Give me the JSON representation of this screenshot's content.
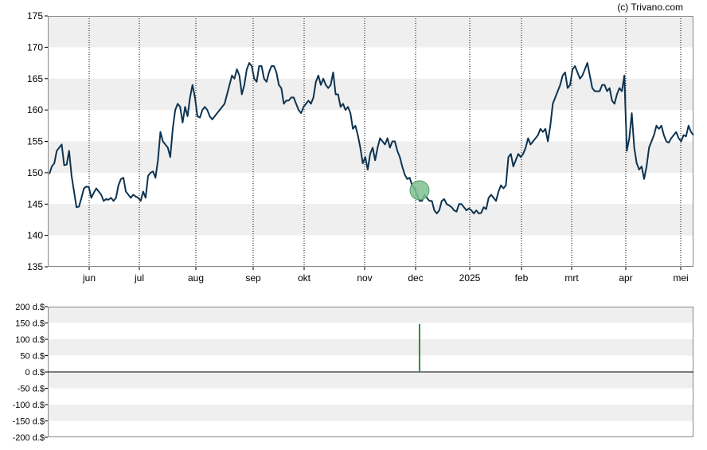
{
  "copyright": "(c) Trivano.com",
  "colors": {
    "price_line": "#0d3350",
    "band": "#efefef",
    "marker_fill": "#7fbf8f",
    "marker_stroke": "#4f9f66",
    "volume_bar": "#2e8b3e"
  },
  "chart_data": [
    {
      "type": "line",
      "name": "price",
      "ylim": [
        135,
        175
      ],
      "y_ticks": [
        135,
        140,
        145,
        150,
        155,
        160,
        165,
        170,
        175
      ],
      "y_tick_labels": [
        "135",
        "140",
        "145",
        "150",
        "155",
        "160",
        "165",
        "170",
        "175"
      ],
      "x_tick_labels": [
        "jun",
        "jul",
        "aug",
        "sep",
        "okt",
        "nov",
        "dec",
        "2025",
        "feb",
        "mrt",
        "apr",
        "mei"
      ],
      "grid": "horizontal bands + dotted vertical month lines",
      "series": [
        {
          "values": [
            149.8,
            151.0,
            151.5,
            153.5,
            154.0,
            154.5,
            151.2,
            151.3,
            153.5,
            149.5,
            147.0,
            144.5,
            144.6,
            146.0,
            147.5,
            147.8,
            147.7,
            146.0,
            146.8,
            147.5,
            147.0,
            146.5,
            145.5,
            145.8,
            145.7,
            146.0,
            145.5,
            146.0,
            148.0,
            149.0,
            149.2,
            147.0,
            146.5,
            146.0,
            146.5,
            146.2,
            146.0,
            145.5,
            147.0,
            146.0,
            149.5,
            150.0,
            150.2,
            149.2,
            152.0,
            156.5,
            155.0,
            154.5,
            154.0,
            152.5,
            157.0,
            160.0,
            161.0,
            160.5,
            158.0,
            160.5,
            159.0,
            162.0,
            164.0,
            162.0,
            159.0,
            158.8,
            160.0,
            160.5,
            160.0,
            159.0,
            158.5,
            159.0,
            159.5,
            160.0,
            160.5,
            161.0,
            162.5,
            164.0,
            165.5,
            165.0,
            166.5,
            165.5,
            162.5,
            164.0,
            166.5,
            167.5,
            167.0,
            165.0,
            164.5,
            167.0,
            167.0,
            165.0,
            164.5,
            166.0,
            167.0,
            167.0,
            166.0,
            164.0,
            163.5,
            161.0,
            161.5,
            161.5,
            162.0,
            162.0,
            161.0,
            160.0,
            159.5,
            160.5,
            161.0,
            161.5,
            161.0,
            162.0,
            164.5,
            165.5,
            164.0,
            165.0,
            164.0,
            163.5,
            164.0,
            166.0,
            162.5,
            162.5,
            160.5,
            161.0,
            160.0,
            160.5,
            159.5,
            157.0,
            157.5,
            156.0,
            154.0,
            151.5,
            152.5,
            150.5,
            153.0,
            154.0,
            152.0,
            154.0,
            155.5,
            155.0,
            154.5,
            155.5,
            154.0,
            155.0,
            155.0,
            153.5,
            152.5,
            151.0,
            149.7,
            149.0,
            149.2,
            148.0,
            147.5,
            146.5,
            145.5,
            145.5,
            146.5,
            146.0,
            145.5,
            145.5,
            144.0,
            143.5,
            144.0,
            145.5,
            145.8,
            145.0,
            144.8,
            144.5,
            144.0,
            143.8,
            145.0,
            145.0,
            144.5,
            144.0,
            144.3,
            144.0,
            143.5,
            144.0,
            143.5,
            143.6,
            144.5,
            144.2,
            146.0,
            146.5,
            146.0,
            145.5,
            147.0,
            148.0,
            147.5,
            148.0,
            152.5,
            153.0,
            151.0,
            152.0,
            153.0,
            152.5,
            153.0,
            154.0,
            155.5,
            154.5,
            155.0,
            155.5,
            156.0,
            157.0,
            156.5,
            157.0,
            155.0,
            157.5,
            161.0,
            162.0,
            163.0,
            164.0,
            165.5,
            166.0,
            163.5,
            164.0,
            166.5,
            167.0,
            166.0,
            165.0,
            165.5,
            166.5,
            167.5,
            165.5,
            163.5,
            163.0,
            163.0,
            163.0,
            164.0,
            164.0,
            163.0,
            163.5,
            161.5,
            161.0,
            162.5,
            163.5,
            163.0,
            165.5,
            153.5,
            155.5,
            159.5,
            154.0,
            151.5,
            150.5,
            151.0,
            149.0,
            151.0,
            154.0,
            155.0,
            156.0,
            157.5,
            157.0,
            157.5,
            156.0,
            155.0,
            154.8,
            155.5,
            156.0,
            156.5,
            155.5,
            155.0,
            156.0,
            155.8,
            157.5,
            156.5,
            156.0
          ],
          "markers": [
            {
              "index": 150,
              "value": 147.2,
              "shape": "circle"
            }
          ]
        }
      ]
    },
    {
      "type": "bar",
      "name": "volume",
      "ylim": [
        -200,
        200
      ],
      "y_ticks": [
        -200,
        -150,
        -100,
        -50,
        0,
        50,
        100,
        150,
        200
      ],
      "y_tick_labels": [
        "-200 d.$",
        "-150 d.$",
        "-100 d.$",
        "-50 d.$",
        "0 d.$",
        "50 d.$",
        "100 d.$",
        "150 d.$",
        "200 d.$"
      ],
      "bars": [
        {
          "index": 150,
          "value": 147
        }
      ]
    }
  ]
}
